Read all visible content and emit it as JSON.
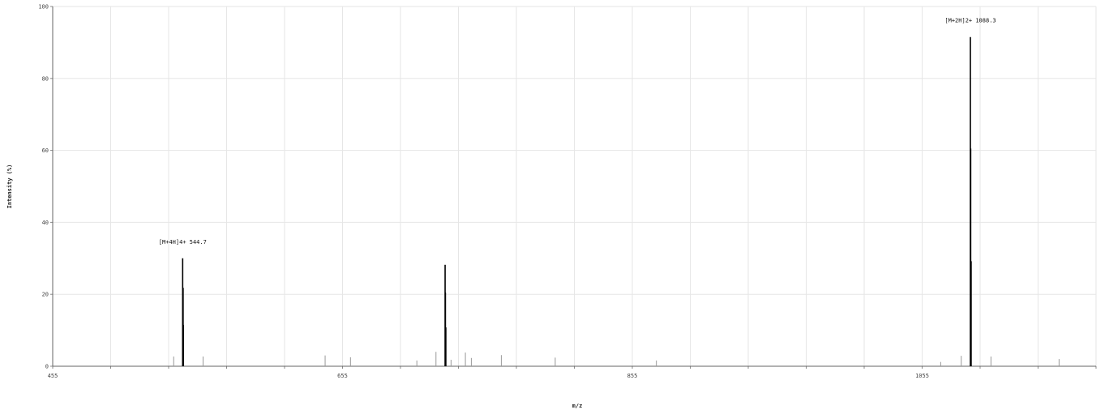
{
  "chart_data": {
    "type": "bar",
    "xlabel": "m/z",
    "ylabel": "Intensity (%)",
    "xlim": [
      455,
      1175
    ],
    "ylim": [
      0,
      100
    ],
    "x_ticks": [
      455,
      655,
      855,
      1055
    ],
    "y_ticks": [
      0,
      20,
      40,
      60,
      80,
      100
    ],
    "grid": true,
    "peaks": [
      {
        "mz": 538.5,
        "intensity": 2.7
      },
      {
        "mz": 544.7,
        "intensity": 30
      },
      {
        "mz": 545.0,
        "intensity": 21.8
      },
      {
        "mz": 545.2,
        "intensity": 11.5
      },
      {
        "mz": 558.8,
        "intensity": 2.7
      },
      {
        "mz": 643.0,
        "intensity": 3.0
      },
      {
        "mz": 660.5,
        "intensity": 2.5
      },
      {
        "mz": 706.3,
        "intensity": 1.6
      },
      {
        "mz": 719.5,
        "intensity": 4.0
      },
      {
        "mz": 725.8,
        "intensity": 28.2
      },
      {
        "mz": 726.0,
        "intensity": 20.5
      },
      {
        "mz": 726.3,
        "intensity": 10.8
      },
      {
        "mz": 729.9,
        "intensity": 1.8
      },
      {
        "mz": 739.8,
        "intensity": 3.8
      },
      {
        "mz": 743.9,
        "intensity": 2.3
      },
      {
        "mz": 764.6,
        "intensity": 3.1
      },
      {
        "mz": 801.8,
        "intensity": 2.4
      },
      {
        "mz": 871.6,
        "intensity": 1.6
      },
      {
        "mz": 1067.8,
        "intensity": 1.2
      },
      {
        "mz": 1082.0,
        "intensity": 2.9
      },
      {
        "mz": 1088.3,
        "intensity": 91.5
      },
      {
        "mz": 1088.5,
        "intensity": 60.5
      },
      {
        "mz": 1088.8,
        "intensity": 29.2
      },
      {
        "mz": 1102.5,
        "intensity": 2.7
      },
      {
        "mz": 1149.5,
        "intensity": 2.0
      }
    ],
    "annotations": [
      {
        "text": "[M+4H]4+ 544.7",
        "mz": 544.7,
        "intensity": 30
      },
      {
        "text": "[M+2H]2+ 1088.3",
        "mz": 1088.3,
        "intensity": 91.5
      }
    ]
  }
}
